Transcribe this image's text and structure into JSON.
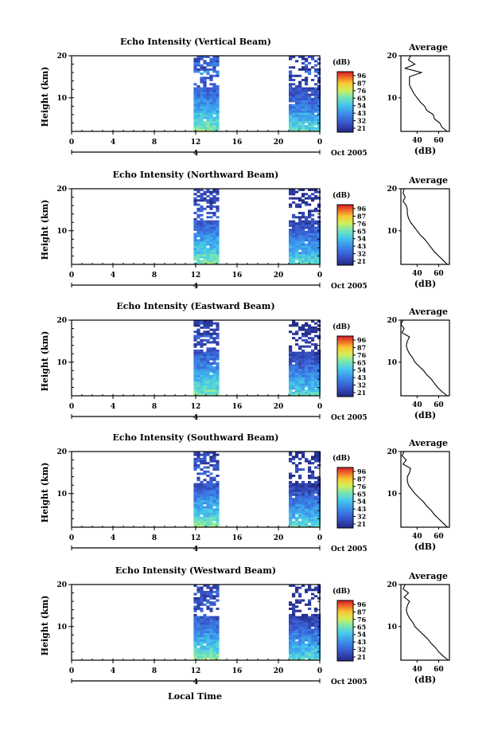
{
  "figure": {
    "xlabel": "Local Time"
  },
  "chart_data": [
    {
      "type": "heatmap",
      "title": "Echo Intensity (Vertical Beam)",
      "ylabel": "Height (km)",
      "ylim": [
        2,
        20
      ],
      "xticks": [
        "0",
        "4",
        "8",
        "12",
        "16",
        "20",
        "0"
      ],
      "day_label": "4",
      "date_label": "Oct 2005",
      "colorbar": {
        "label": "(dB)",
        "ticks": [
          "96",
          "87",
          "76",
          "65",
          "54",
          "43",
          "32",
          "21"
        ],
        "range": [
          21,
          96
        ]
      },
      "data_blocks": [
        {
          "hours": [
            11.8,
            14.2
          ]
        },
        {
          "hours": [
            21.0,
            23.8
          ]
        }
      ],
      "profile": {
        "title": "Average",
        "xlabel": "(dB)",
        "xticks": [
          "40",
          "60"
        ],
        "yticks": [
          "10",
          "20"
        ],
        "heights": [
          2,
          3,
          4,
          5,
          6,
          7,
          8,
          9,
          10,
          11,
          12,
          13,
          14,
          15,
          16,
          17,
          18,
          19,
          20
        ],
        "values": [
          68,
          63,
          61,
          56,
          55,
          49,
          47,
          43,
          40,
          37,
          35,
          33,
          33,
          33,
          44,
          29,
          38,
          32,
          34
        ]
      }
    },
    {
      "type": "heatmap",
      "title": "Echo Intensity (Northward Beam)",
      "ylabel": "Height (km)",
      "ylim": [
        2,
        20
      ],
      "xticks": [
        "0",
        "4",
        "8",
        "12",
        "16",
        "20",
        "0"
      ],
      "day_label": "4",
      "date_label": "Oct 2005",
      "colorbar": {
        "label": "(dB)",
        "ticks": [
          "96",
          "87",
          "76",
          "65",
          "54",
          "43",
          "32",
          "21"
        ],
        "range": [
          21,
          96
        ]
      },
      "data_blocks": [
        {
          "hours": [
            11.8,
            14.2
          ]
        },
        {
          "hours": [
            21.0,
            23.8
          ]
        }
      ],
      "profile": {
        "title": "Average",
        "xlabel": "(dB)",
        "xticks": [
          "40",
          "60"
        ],
        "yticks": [
          "10",
          "20"
        ],
        "heights": [
          2,
          3,
          4,
          5,
          6,
          7,
          8,
          9,
          10,
          11,
          12,
          13,
          14,
          15,
          16,
          17,
          18,
          19,
          20
        ],
        "values": [
          68,
          64,
          60,
          56,
          53,
          50,
          47,
          43,
          40,
          37,
          34,
          32,
          31,
          31,
          30,
          27,
          29,
          27,
          28
        ]
      }
    },
    {
      "type": "heatmap",
      "title": "Echo Intensity (Eastward Beam)",
      "ylabel": "Height (km)",
      "ylim": [
        2,
        20
      ],
      "xticks": [
        "0",
        "4",
        "8",
        "12",
        "16",
        "20",
        "0"
      ],
      "day_label": "4",
      "date_label": "Oct 2005",
      "colorbar": {
        "label": "(dB)",
        "ticks": [
          "96",
          "87",
          "76",
          "65",
          "54",
          "43",
          "32",
          "21"
        ],
        "range": [
          21,
          96
        ]
      },
      "data_blocks": [
        {
          "hours": [
            11.8,
            14.2
          ]
        },
        {
          "hours": [
            21.0,
            23.8
          ]
        }
      ],
      "profile": {
        "title": "Average",
        "xlabel": "(dB)",
        "xticks": [
          "40",
          "60"
        ],
        "yticks": [
          "10",
          "20"
        ],
        "heights": [
          2,
          3,
          4,
          5,
          6,
          7,
          8,
          9,
          10,
          11,
          12,
          13,
          14,
          15,
          16,
          17,
          18,
          19,
          20
        ],
        "values": [
          68,
          63,
          59,
          56,
          53,
          49,
          46,
          42,
          38,
          36,
          33,
          31,
          30,
          31,
          33,
          26,
          28,
          25,
          27
        ]
      }
    },
    {
      "type": "heatmap",
      "title": "Echo Intensity (Southward Beam)",
      "ylabel": "Height (km)",
      "ylim": [
        2,
        20
      ],
      "xticks": [
        "0",
        "4",
        "8",
        "12",
        "16",
        "20",
        "0"
      ],
      "day_label": "4",
      "date_label": "Oct 2005",
      "colorbar": {
        "label": "(dB)",
        "ticks": [
          "96",
          "87",
          "76",
          "65",
          "54",
          "43",
          "32",
          "21"
        ],
        "range": [
          21,
          96
        ]
      },
      "data_blocks": [
        {
          "hours": [
            11.8,
            14.2
          ]
        },
        {
          "hours": [
            21.0,
            23.8
          ]
        }
      ],
      "profile": {
        "title": "Average",
        "xlabel": "(dB)",
        "xticks": [
          "40",
          "60"
        ],
        "yticks": [
          "10",
          "20"
        ],
        "heights": [
          2,
          3,
          4,
          5,
          6,
          7,
          8,
          9,
          10,
          11,
          12,
          13,
          14,
          15,
          16,
          17,
          18,
          19,
          20
        ],
        "values": [
          68,
          64,
          60,
          56,
          53,
          49,
          46,
          42,
          38,
          35,
          32,
          31,
          31,
          33,
          34,
          27,
          30,
          26,
          28
        ]
      }
    },
    {
      "type": "heatmap",
      "title": "Echo Intensity (Westward Beam)",
      "ylabel": "Height (km)",
      "ylim": [
        2,
        20
      ],
      "xticks": [
        "0",
        "4",
        "8",
        "12",
        "16",
        "20",
        "0"
      ],
      "day_label": "4",
      "date_label": "Oct 2005",
      "colorbar": {
        "label": "(dB)",
        "ticks": [
          "96",
          "87",
          "76",
          "65",
          "54",
          "43",
          "32",
          "21"
        ],
        "range": [
          21,
          96
        ]
      },
      "data_blocks": [
        {
          "hours": [
            11.8,
            14.2
          ]
        },
        {
          "hours": [
            21.0,
            23.8
          ]
        }
      ],
      "profile": {
        "title": "Average",
        "xlabel": "(dB)",
        "xticks": [
          "40",
          "60"
        ],
        "yticks": [
          "10",
          "20"
        ],
        "heights": [
          2,
          3,
          4,
          5,
          6,
          7,
          8,
          9,
          10,
          11,
          12,
          13,
          14,
          15,
          16,
          17,
          18,
          19,
          20
        ],
        "values": [
          69,
          64,
          60,
          57,
          53,
          50,
          46,
          42,
          38,
          36,
          33,
          31,
          30,
          31,
          33,
          28,
          32,
          27,
          29
        ]
      }
    }
  ]
}
